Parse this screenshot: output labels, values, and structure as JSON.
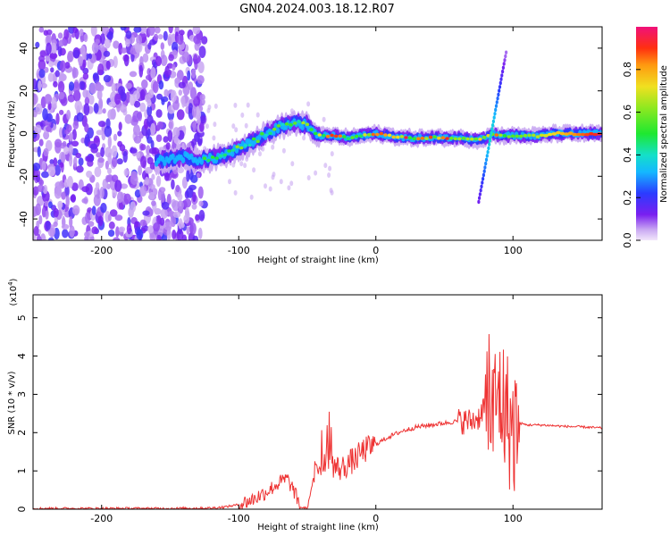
{
  "title": "GN04.2024.003.18.12.R07",
  "chart_data": [
    {
      "type": "heatmap",
      "xlabel": "Height of straight line (km)",
      "ylabel": "Frequency (Hz)",
      "xlim": [
        -250,
        165
      ],
      "ylim": [
        -50,
        50
      ],
      "xticks": [
        -200,
        -100,
        0,
        100
      ],
      "yticks": [
        -40,
        -20,
        0,
        20,
        40
      ],
      "colorbar": {
        "label": "Normalized spectral amplitude",
        "range": [
          0,
          1
        ],
        "ticks": [
          "0.0",
          "0.2",
          "0.4",
          "0.6",
          "0.8"
        ]
      },
      "frequency_track": {
        "x": [
          -160,
          -150,
          -140,
          -130,
          -120,
          -110,
          -100,
          -90,
          -80,
          -70,
          -60,
          -50,
          -45,
          -40,
          -30,
          -20,
          -10,
          0,
          20,
          40,
          60,
          75,
          80,
          85,
          90,
          95,
          100,
          110,
          120,
          130,
          140,
          150,
          165
        ],
        "y": [
          -13,
          -12,
          -11,
          -12,
          -12,
          -10,
          -7,
          -4,
          0,
          3,
          5,
          4,
          0,
          -1,
          -1,
          -2,
          -1,
          0,
          -2,
          -2,
          -2,
          -3,
          -2,
          0,
          -1,
          -1,
          -1,
          -1,
          -1,
          0,
          0,
          0,
          0
        ]
      },
      "noise_region_x": [
        -250,
        -125
      ]
    },
    {
      "type": "line",
      "xlabel": "Height of straight line (km)",
      "ylabel": "SNR (10 * v/v)",
      "yscale_label": "(x10",
      "yscale_exp": "4",
      "yscale_close": ")",
      "xlim": [
        -250,
        165
      ],
      "ylim": [
        0,
        5.6
      ],
      "xticks": [
        -200,
        -100,
        0,
        100
      ],
      "yticks": [
        0,
        1,
        2,
        3,
        4,
        5
      ],
      "series": [
        {
          "color": "#ee3333",
          "x": [
            -250,
            -150,
            -120,
            -110,
            -100,
            -90,
            -80,
            -70,
            -65,
            -60,
            -55,
            -50,
            -45,
            -40,
            -35,
            -30,
            -25,
            -20,
            -15,
            -10,
            -5,
            0,
            10,
            20,
            30,
            40,
            50,
            60,
            70,
            75,
            80,
            85,
            90,
            95,
            100,
            105,
            110,
            120,
            130,
            140,
            150,
            165
          ],
          "y": [
            0.02,
            0.02,
            0.03,
            0.06,
            0.12,
            0.25,
            0.45,
            0.7,
            0.8,
            0.5,
            0.05,
            0.02,
            0.9,
            1.2,
            1.4,
            1.1,
            1.05,
            1.2,
            1.3,
            1.5,
            1.6,
            1.7,
            1.9,
            2.05,
            2.15,
            2.2,
            2.25,
            2.3,
            2.3,
            2.4,
            2.8,
            2.4,
            3.0,
            2.5,
            2.0,
            2.25,
            2.2,
            2.2,
            2.18,
            2.16,
            2.15,
            2.12
          ]
        }
      ]
    }
  ]
}
